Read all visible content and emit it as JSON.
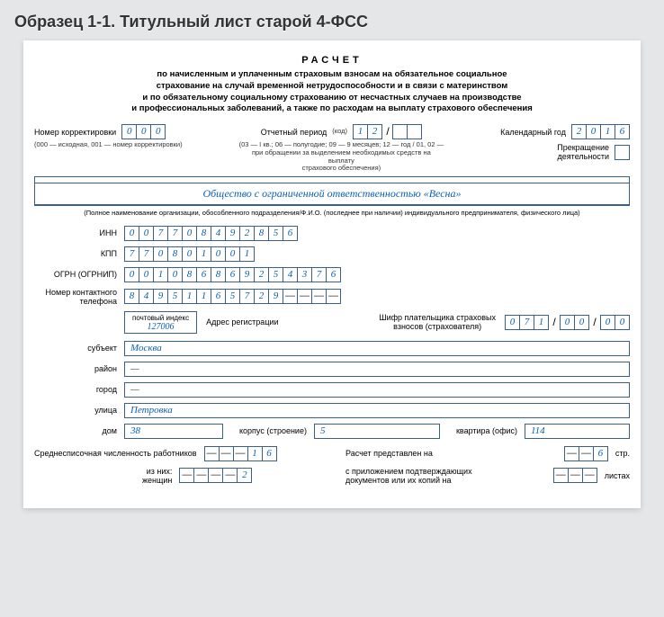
{
  "header": "Образец 1-1. Титульный лист старой 4-ФСС",
  "title": "РАСЧЕТ",
  "subtitle": "по начисленным и уплаченным страховым взносам на обязательное социальное\nстрахование на случай временной нетрудоспособности и в связи с материнством\nи по обязательному социальному страхованию от несчастных случаев на производстве\nи профессиональных заболеваний, а также по расходам на выплату страхового обеспечения",
  "corr": {
    "label": "Номер корректировки",
    "cells": [
      "0",
      "0",
      "0"
    ],
    "note": "(000 — исходная, 001 — номер корректировки)"
  },
  "period": {
    "label": "Отчетный период",
    "code_label": "(код)",
    "cells": [
      "1",
      "2",
      "",
      ""
    ],
    "note": "(03 — I кв.; 06 — полугодие; 09 — 9 месяцев; 12 — год / 01, 02 —\nпри обращении за выделением необходимых средств на выплату\nстрахового обеспечения)"
  },
  "year": {
    "label": "Календарный год",
    "cells": [
      "2",
      "0",
      "1",
      "6"
    ]
  },
  "termination": {
    "label": "Прекращение\nдеятельности"
  },
  "org_name": "Общество с ограниченной ответственностью «Весна»",
  "org_caption": "(Полное наименование организации, обособленного подразделения/Ф.И.О. (последнее при наличии) индивидуального предпринимателя, физического лица)",
  "inn": {
    "label": "ИНН",
    "cells": [
      "0",
      "0",
      "7",
      "7",
      "0",
      "8",
      "4",
      "9",
      "2",
      "8",
      "5",
      "6"
    ]
  },
  "kpp": {
    "label": "КПП",
    "cells": [
      "7",
      "7",
      "0",
      "8",
      "0",
      "1",
      "0",
      "0",
      "1"
    ]
  },
  "ogrn": {
    "label": "ОГРН (ОГРНИП)",
    "cells": [
      "0",
      "0",
      "1",
      "0",
      "8",
      "6",
      "8",
      "6",
      "9",
      "2",
      "5",
      "4",
      "3",
      "7",
      "6"
    ]
  },
  "phone": {
    "label": "Номер контактного\nтелефона",
    "cells": [
      "8",
      "4",
      "9",
      "5",
      "1",
      "1",
      "6",
      "5",
      "7",
      "2",
      "9",
      "",
      "",
      "",
      ""
    ]
  },
  "postal": {
    "label": "почтовый индекс",
    "value": "127006"
  },
  "addr_label": "Адрес регистрации",
  "payer_code": {
    "label": "Шифр плательщика страховых\nвзносов (страхователя)",
    "g1": [
      "0",
      "7",
      "1"
    ],
    "g2": [
      "0",
      "0"
    ],
    "g3": [
      "0",
      "0"
    ]
  },
  "subject": {
    "label": "субъект",
    "value": "Москва"
  },
  "district": {
    "label": "район",
    "value": "—"
  },
  "city": {
    "label": "город",
    "value": "—"
  },
  "street": {
    "label": "улица",
    "value": "Петровка"
  },
  "house": {
    "label": "дом",
    "value": "38"
  },
  "building": {
    "label": "корпус (строение)",
    "value": "5"
  },
  "flat": {
    "label": "квартира (офис)",
    "value": "114"
  },
  "avg_emp": {
    "label": "Среднесписочная численность работников",
    "cells": [
      "",
      "",
      "",
      "1",
      "6"
    ]
  },
  "women": {
    "prefix": "из них:",
    "label": "женщин",
    "cells": [
      "",
      "",
      "",
      "",
      "2"
    ]
  },
  "pages": {
    "label": "Расчет представлен на",
    "cells": [
      "",
      "",
      "6"
    ],
    "suffix": "стр."
  },
  "attach": {
    "label": "с приложением подтверждающих\nдокументов или их копий на",
    "cells": [
      "",
      "",
      ""
    ],
    "suffix": "листах"
  },
  "colors": {
    "border": "#3b5f8a",
    "value": "#0a5fb4",
    "bg": "#e4e6e8"
  }
}
